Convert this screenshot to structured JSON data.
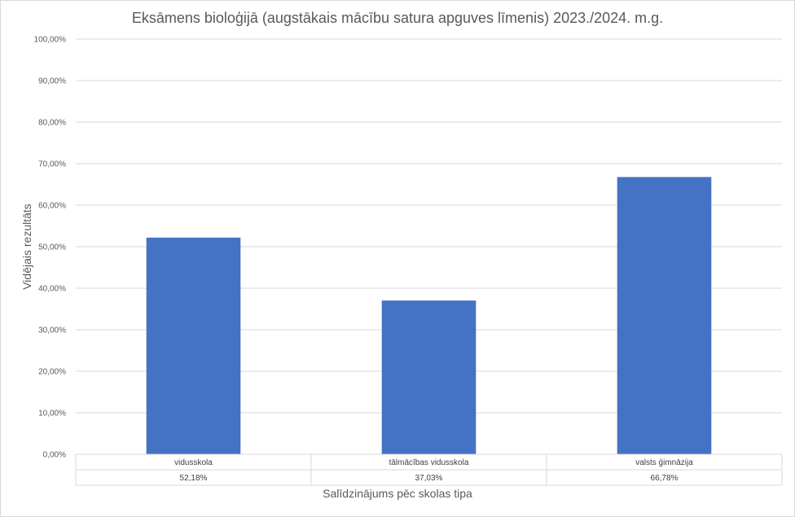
{
  "chart_data": {
    "type": "bar",
    "title": "Eksāmens bioloģijā  (augstākais mācību satura apguves līmenis) 2023./2024. m.g.",
    "xlabel": "Salīdzinājums pēc skolas tipa",
    "ylabel": "Vidējais rezultāts",
    "categories": [
      "vidusskola",
      "tālmācības vidusskola",
      "valsts ģimnāzija"
    ],
    "series": [
      {
        "values": [
          52.18,
          37.03,
          66.78
        ]
      }
    ],
    "data_table_labels": [
      "52,18%",
      "37,03%",
      "66,78%"
    ],
    "y_ticks": [
      "0,00%",
      "10,00%",
      "20,00%",
      "30,00%",
      "40,00%",
      "50,00%",
      "60,00%",
      "70,00%",
      "80,00%",
      "90,00%",
      "100,00%"
    ],
    "ylim": [
      0,
      100
    ],
    "grid": true,
    "legend": "none",
    "colors": {
      "bar": "#4472c4",
      "grid": "#d9d9d9",
      "text": "#595959"
    }
  }
}
